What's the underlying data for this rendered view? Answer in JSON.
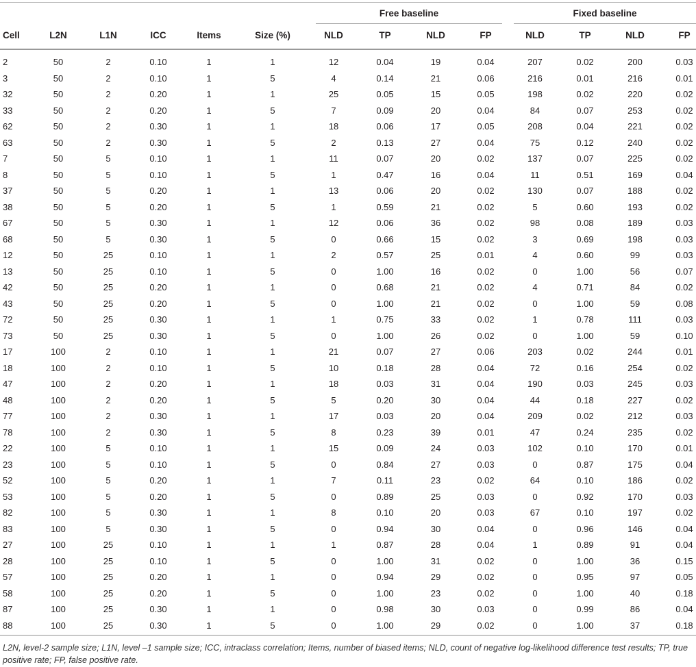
{
  "table": {
    "groups": [
      "Free baseline",
      "Fixed baseline"
    ],
    "columns": [
      "Cell",
      "L2N",
      "L1N",
      "ICC",
      "Items",
      "Size (%)",
      "NLD",
      "TP",
      "NLD",
      "FP",
      "NLD",
      "TP",
      "NLD",
      "FP"
    ],
    "rows": [
      [
        "2",
        "50",
        "2",
        "0.10",
        "1",
        "1",
        "12",
        "0.04",
        "19",
        "0.04",
        "207",
        "0.02",
        "200",
        "0.03"
      ],
      [
        "3",
        "50",
        "2",
        "0.10",
        "1",
        "5",
        "4",
        "0.14",
        "21",
        "0.06",
        "216",
        "0.01",
        "216",
        "0.01"
      ],
      [
        "32",
        "50",
        "2",
        "0.20",
        "1",
        "1",
        "25",
        "0.05",
        "15",
        "0.05",
        "198",
        "0.02",
        "220",
        "0.02"
      ],
      [
        "33",
        "50",
        "2",
        "0.20",
        "1",
        "5",
        "7",
        "0.09",
        "20",
        "0.04",
        "84",
        "0.07",
        "253",
        "0.02"
      ],
      [
        "62",
        "50",
        "2",
        "0.30",
        "1",
        "1",
        "18",
        "0.06",
        "17",
        "0.05",
        "208",
        "0.04",
        "221",
        "0.02"
      ],
      [
        "63",
        "50",
        "2",
        "0.30",
        "1",
        "5",
        "2",
        "0.13",
        "27",
        "0.04",
        "75",
        "0.12",
        "240",
        "0.02"
      ],
      [
        "7",
        "50",
        "5",
        "0.10",
        "1",
        "1",
        "11",
        "0.07",
        "20",
        "0.02",
        "137",
        "0.07",
        "225",
        "0.02"
      ],
      [
        "8",
        "50",
        "5",
        "0.10",
        "1",
        "5",
        "1",
        "0.47",
        "16",
        "0.04",
        "11",
        "0.51",
        "169",
        "0.04"
      ],
      [
        "37",
        "50",
        "5",
        "0.20",
        "1",
        "1",
        "13",
        "0.06",
        "20",
        "0.02",
        "130",
        "0.07",
        "188",
        "0.02"
      ],
      [
        "38",
        "50",
        "5",
        "0.20",
        "1",
        "5",
        "1",
        "0.59",
        "21",
        "0.02",
        "5",
        "0.60",
        "193",
        "0.02"
      ],
      [
        "67",
        "50",
        "5",
        "0.30",
        "1",
        "1",
        "12",
        "0.06",
        "36",
        "0.02",
        "98",
        "0.08",
        "189",
        "0.03"
      ],
      [
        "68",
        "50",
        "5",
        "0.30",
        "1",
        "5",
        "0",
        "0.66",
        "15",
        "0.02",
        "3",
        "0.69",
        "198",
        "0.03"
      ],
      [
        "12",
        "50",
        "25",
        "0.10",
        "1",
        "1",
        "2",
        "0.57",
        "25",
        "0.01",
        "4",
        "0.60",
        "99",
        "0.03"
      ],
      [
        "13",
        "50",
        "25",
        "0.10",
        "1",
        "5",
        "0",
        "1.00",
        "16",
        "0.02",
        "0",
        "1.00",
        "56",
        "0.07"
      ],
      [
        "42",
        "50",
        "25",
        "0.20",
        "1",
        "1",
        "0",
        "0.68",
        "21",
        "0.02",
        "4",
        "0.71",
        "84",
        "0.02"
      ],
      [
        "43",
        "50",
        "25",
        "0.20",
        "1",
        "5",
        "0",
        "1.00",
        "21",
        "0.02",
        "0",
        "1.00",
        "59",
        "0.08"
      ],
      [
        "72",
        "50",
        "25",
        "0.30",
        "1",
        "1",
        "1",
        "0.75",
        "33",
        "0.02",
        "1",
        "0.78",
        "111",
        "0.03"
      ],
      [
        "73",
        "50",
        "25",
        "0.30",
        "1",
        "5",
        "0",
        "1.00",
        "26",
        "0.02",
        "0",
        "1.00",
        "59",
        "0.10"
      ],
      [
        "17",
        "100",
        "2",
        "0.10",
        "1",
        "1",
        "21",
        "0.07",
        "27",
        "0.06",
        "203",
        "0.02",
        "244",
        "0.01"
      ],
      [
        "18",
        "100",
        "2",
        "0.10",
        "1",
        "5",
        "10",
        "0.18",
        "28",
        "0.04",
        "72",
        "0.16",
        "254",
        "0.02"
      ],
      [
        "47",
        "100",
        "2",
        "0.20",
        "1",
        "1",
        "18",
        "0.03",
        "31",
        "0.04",
        "190",
        "0.03",
        "245",
        "0.03"
      ],
      [
        "48",
        "100",
        "2",
        "0.20",
        "1",
        "5",
        "5",
        "0.20",
        "30",
        "0.04",
        "44",
        "0.18",
        "227",
        "0.02"
      ],
      [
        "77",
        "100",
        "2",
        "0.30",
        "1",
        "1",
        "17",
        "0.03",
        "20",
        "0.04",
        "209",
        "0.02",
        "212",
        "0.03"
      ],
      [
        "78",
        "100",
        "2",
        "0.30",
        "1",
        "5",
        "8",
        "0.23",
        "39",
        "0.01",
        "47",
        "0.24",
        "235",
        "0.02"
      ],
      [
        "22",
        "100",
        "5",
        "0.10",
        "1",
        "1",
        "15",
        "0.09",
        "24",
        "0.03",
        "102",
        "0.10",
        "170",
        "0.01"
      ],
      [
        "23",
        "100",
        "5",
        "0.10",
        "1",
        "5",
        "0",
        "0.84",
        "27",
        "0.03",
        "0",
        "0.87",
        "175",
        "0.04"
      ],
      [
        "52",
        "100",
        "5",
        "0.20",
        "1",
        "1",
        "7",
        "0.11",
        "23",
        "0.02",
        "64",
        "0.10",
        "186",
        "0.02"
      ],
      [
        "53",
        "100",
        "5",
        "0.20",
        "1",
        "5",
        "0",
        "0.89",
        "25",
        "0.03",
        "0",
        "0.92",
        "170",
        "0.03"
      ],
      [
        "82",
        "100",
        "5",
        "0.30",
        "1",
        "1",
        "8",
        "0.10",
        "20",
        "0.03",
        "67",
        "0.10",
        "197",
        "0.02"
      ],
      [
        "83",
        "100",
        "5",
        "0.30",
        "1",
        "5",
        "0",
        "0.94",
        "30",
        "0.04",
        "0",
        "0.96",
        "146",
        "0.04"
      ],
      [
        "27",
        "100",
        "25",
        "0.10",
        "1",
        "1",
        "1",
        "0.87",
        "28",
        "0.04",
        "1",
        "0.89",
        "91",
        "0.04"
      ],
      [
        "28",
        "100",
        "25",
        "0.10",
        "1",
        "5",
        "0",
        "1.00",
        "31",
        "0.02",
        "0",
        "1.00",
        "36",
        "0.15"
      ],
      [
        "57",
        "100",
        "25",
        "0.20",
        "1",
        "1",
        "0",
        "0.94",
        "29",
        "0.02",
        "0",
        "0.95",
        "97",
        "0.05"
      ],
      [
        "58",
        "100",
        "25",
        "0.20",
        "1",
        "5",
        "0",
        "1.00",
        "23",
        "0.02",
        "0",
        "1.00",
        "40",
        "0.18"
      ],
      [
        "87",
        "100",
        "25",
        "0.30",
        "1",
        "1",
        "0",
        "0.98",
        "30",
        "0.03",
        "0",
        "0.99",
        "86",
        "0.04"
      ],
      [
        "88",
        "100",
        "25",
        "0.30",
        "1",
        "5",
        "0",
        "1.00",
        "29",
        "0.02",
        "0",
        "1.00",
        "37",
        "0.18"
      ]
    ],
    "footnote": "L2N, level-2 sample size; L1N, level –1 sample size; ICC, intraclass correlation; Items, number of biased items; NLD, count of negative log-likelihood difference test results; TP, true positive rate; FP, false positive rate."
  }
}
